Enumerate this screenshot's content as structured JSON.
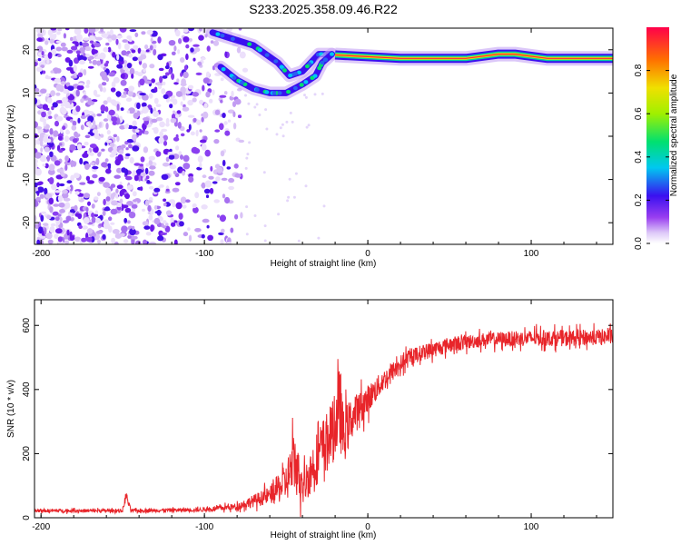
{
  "chart_data": [
    {
      "type": "heatmap",
      "title": "S233.2025.358.09.46.R22",
      "xlabel": "Height of straight line (km)",
      "ylabel": "Frequency (Hz)",
      "xlim": [
        -204,
        150
      ],
      "ylim": [
        -25,
        25
      ],
      "xticks": [
        -200,
        -100,
        0,
        100
      ],
      "yticks": [
        -20,
        -10,
        0,
        10,
        20
      ],
      "colorbar": {
        "label": "Normalized spectral amplitude",
        "range": [
          0,
          1
        ],
        "ticks": [
          "0.0",
          "0.2",
          "0.4",
          "0.6",
          "0.8"
        ]
      },
      "features": [
        {
          "name": "noise",
          "x_range": [
            -204,
            -75
          ],
          "freq_range": [
            -25,
            25
          ]
        },
        {
          "name": "upper-branch",
          "points": [
            [
              -95,
              24
            ],
            [
              -70,
              21
            ],
            [
              -55,
              17
            ],
            [
              -48,
              14
            ],
            [
              -40,
              15
            ],
            [
              -30,
              19
            ],
            [
              -22,
              19
            ]
          ]
        },
        {
          "name": "lower-branch",
          "points": [
            [
              -90,
              16
            ],
            [
              -80,
              13
            ],
            [
              -70,
              11
            ],
            [
              -60,
              10
            ],
            [
              -50,
              10
            ],
            [
              -40,
              12
            ],
            [
              -32,
              14
            ],
            [
              -28,
              17
            ],
            [
              -22,
              19
            ]
          ]
        },
        {
          "name": "tone",
          "points": [
            [
              -20,
              18.8
            ],
            [
              0,
              18.4
            ],
            [
              20,
              18
            ],
            [
              60,
              18
            ],
            [
              80,
              19
            ],
            [
              90,
              19
            ],
            [
              110,
              18
            ],
            [
              150,
              18
            ]
          ]
        }
      ]
    },
    {
      "type": "line",
      "xlabel": "Height of straight line (km)",
      "ylabel": "SNR (10 * v/v)",
      "xlim": [
        -204,
        150
      ],
      "ylim": [
        0,
        680
      ],
      "xticks": [
        -200,
        -100,
        0,
        100
      ],
      "yticks": [
        0,
        200,
        400,
        600
      ],
      "series": [
        {
          "name": "SNR",
          "color": "#e8252a",
          "envelope": {
            "x": [
              -204,
              -150,
              -148,
              -145,
              -100,
              -80,
              -60,
              -50,
              -45,
              -40,
              -30,
              -20,
              -17,
              -15,
              -10,
              0,
              10,
              20,
              30,
              50,
              70,
              100,
              120,
              150
            ],
            "mean": [
              22,
              22,
              70,
              22,
              25,
              35,
              70,
              110,
              180,
              90,
              200,
              280,
              350,
              250,
              310,
              370,
              430,
              480,
              510,
              540,
              555,
              560,
              560,
              565
            ],
            "amp": [
              10,
              10,
              30,
              10,
              12,
              20,
              50,
              110,
              180,
              100,
              160,
              180,
              250,
              160,
              120,
              80,
              60,
              50,
              45,
              45,
              40,
              45,
              45,
              45
            ]
          }
        }
      ]
    }
  ]
}
